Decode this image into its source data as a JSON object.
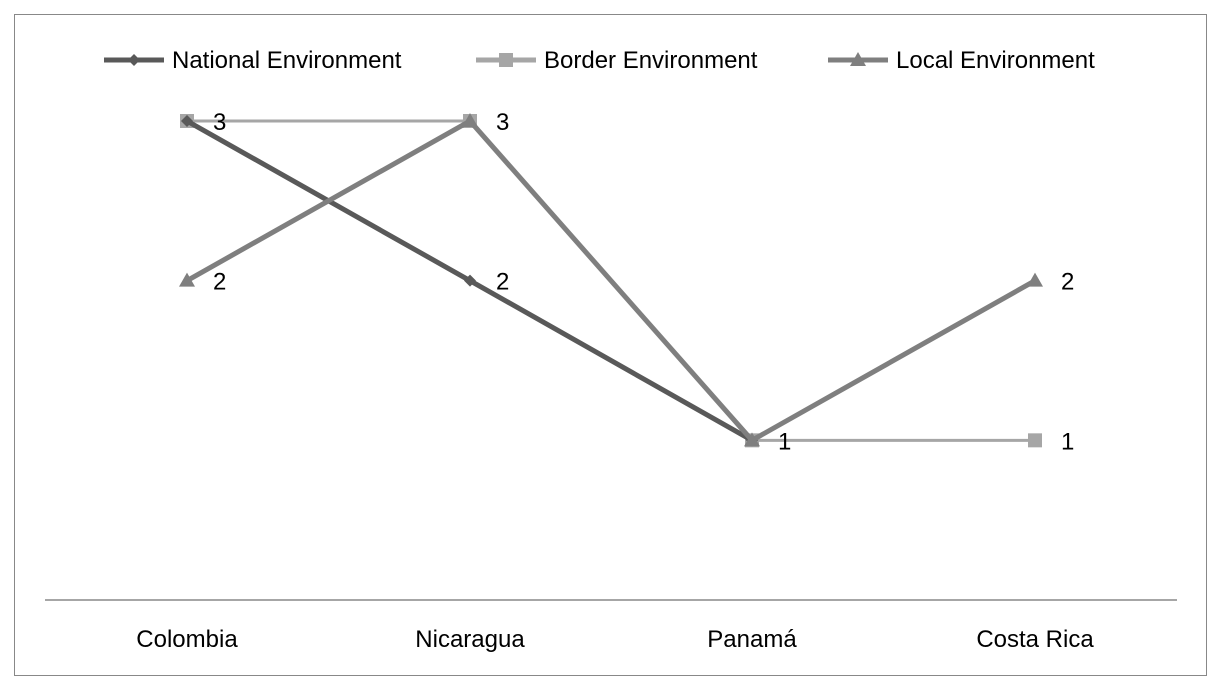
{
  "chart_data": {
    "type": "line",
    "categories": [
      "Colombia",
      "Nicaragua",
      "Panamá",
      "Costa Rica"
    ],
    "series": [
      {
        "name": "National Environment",
        "values": [
          3,
          2,
          1,
          null
        ],
        "color": "#595959",
        "marker": "diamond"
      },
      {
        "name": "Border Environment",
        "values": [
          3,
          3,
          1,
          1
        ],
        "color": "#a6a6a6",
        "marker": "square"
      },
      {
        "name": "Local Environment",
        "values": [
          2,
          3,
          1,
          2
        ],
        "color": "#7f7f7f",
        "marker": "triangle"
      }
    ],
    "data_labels": [
      {
        "category": "Colombia",
        "text": "3"
      },
      {
        "category": "Colombia",
        "text": "2"
      },
      {
        "category": "Nicaragua",
        "text": "3"
      },
      {
        "category": "Nicaragua",
        "text": "2"
      },
      {
        "category": "Panamá",
        "text": "1"
      },
      {
        "category": "Costa Rica",
        "text": "2"
      },
      {
        "category": "Costa Rica",
        "text": "1"
      }
    ],
    "ylim": [
      0,
      3.6
    ],
    "grid": false,
    "legend_position": "top",
    "title": "",
    "xlabel": "",
    "ylabel": ""
  }
}
